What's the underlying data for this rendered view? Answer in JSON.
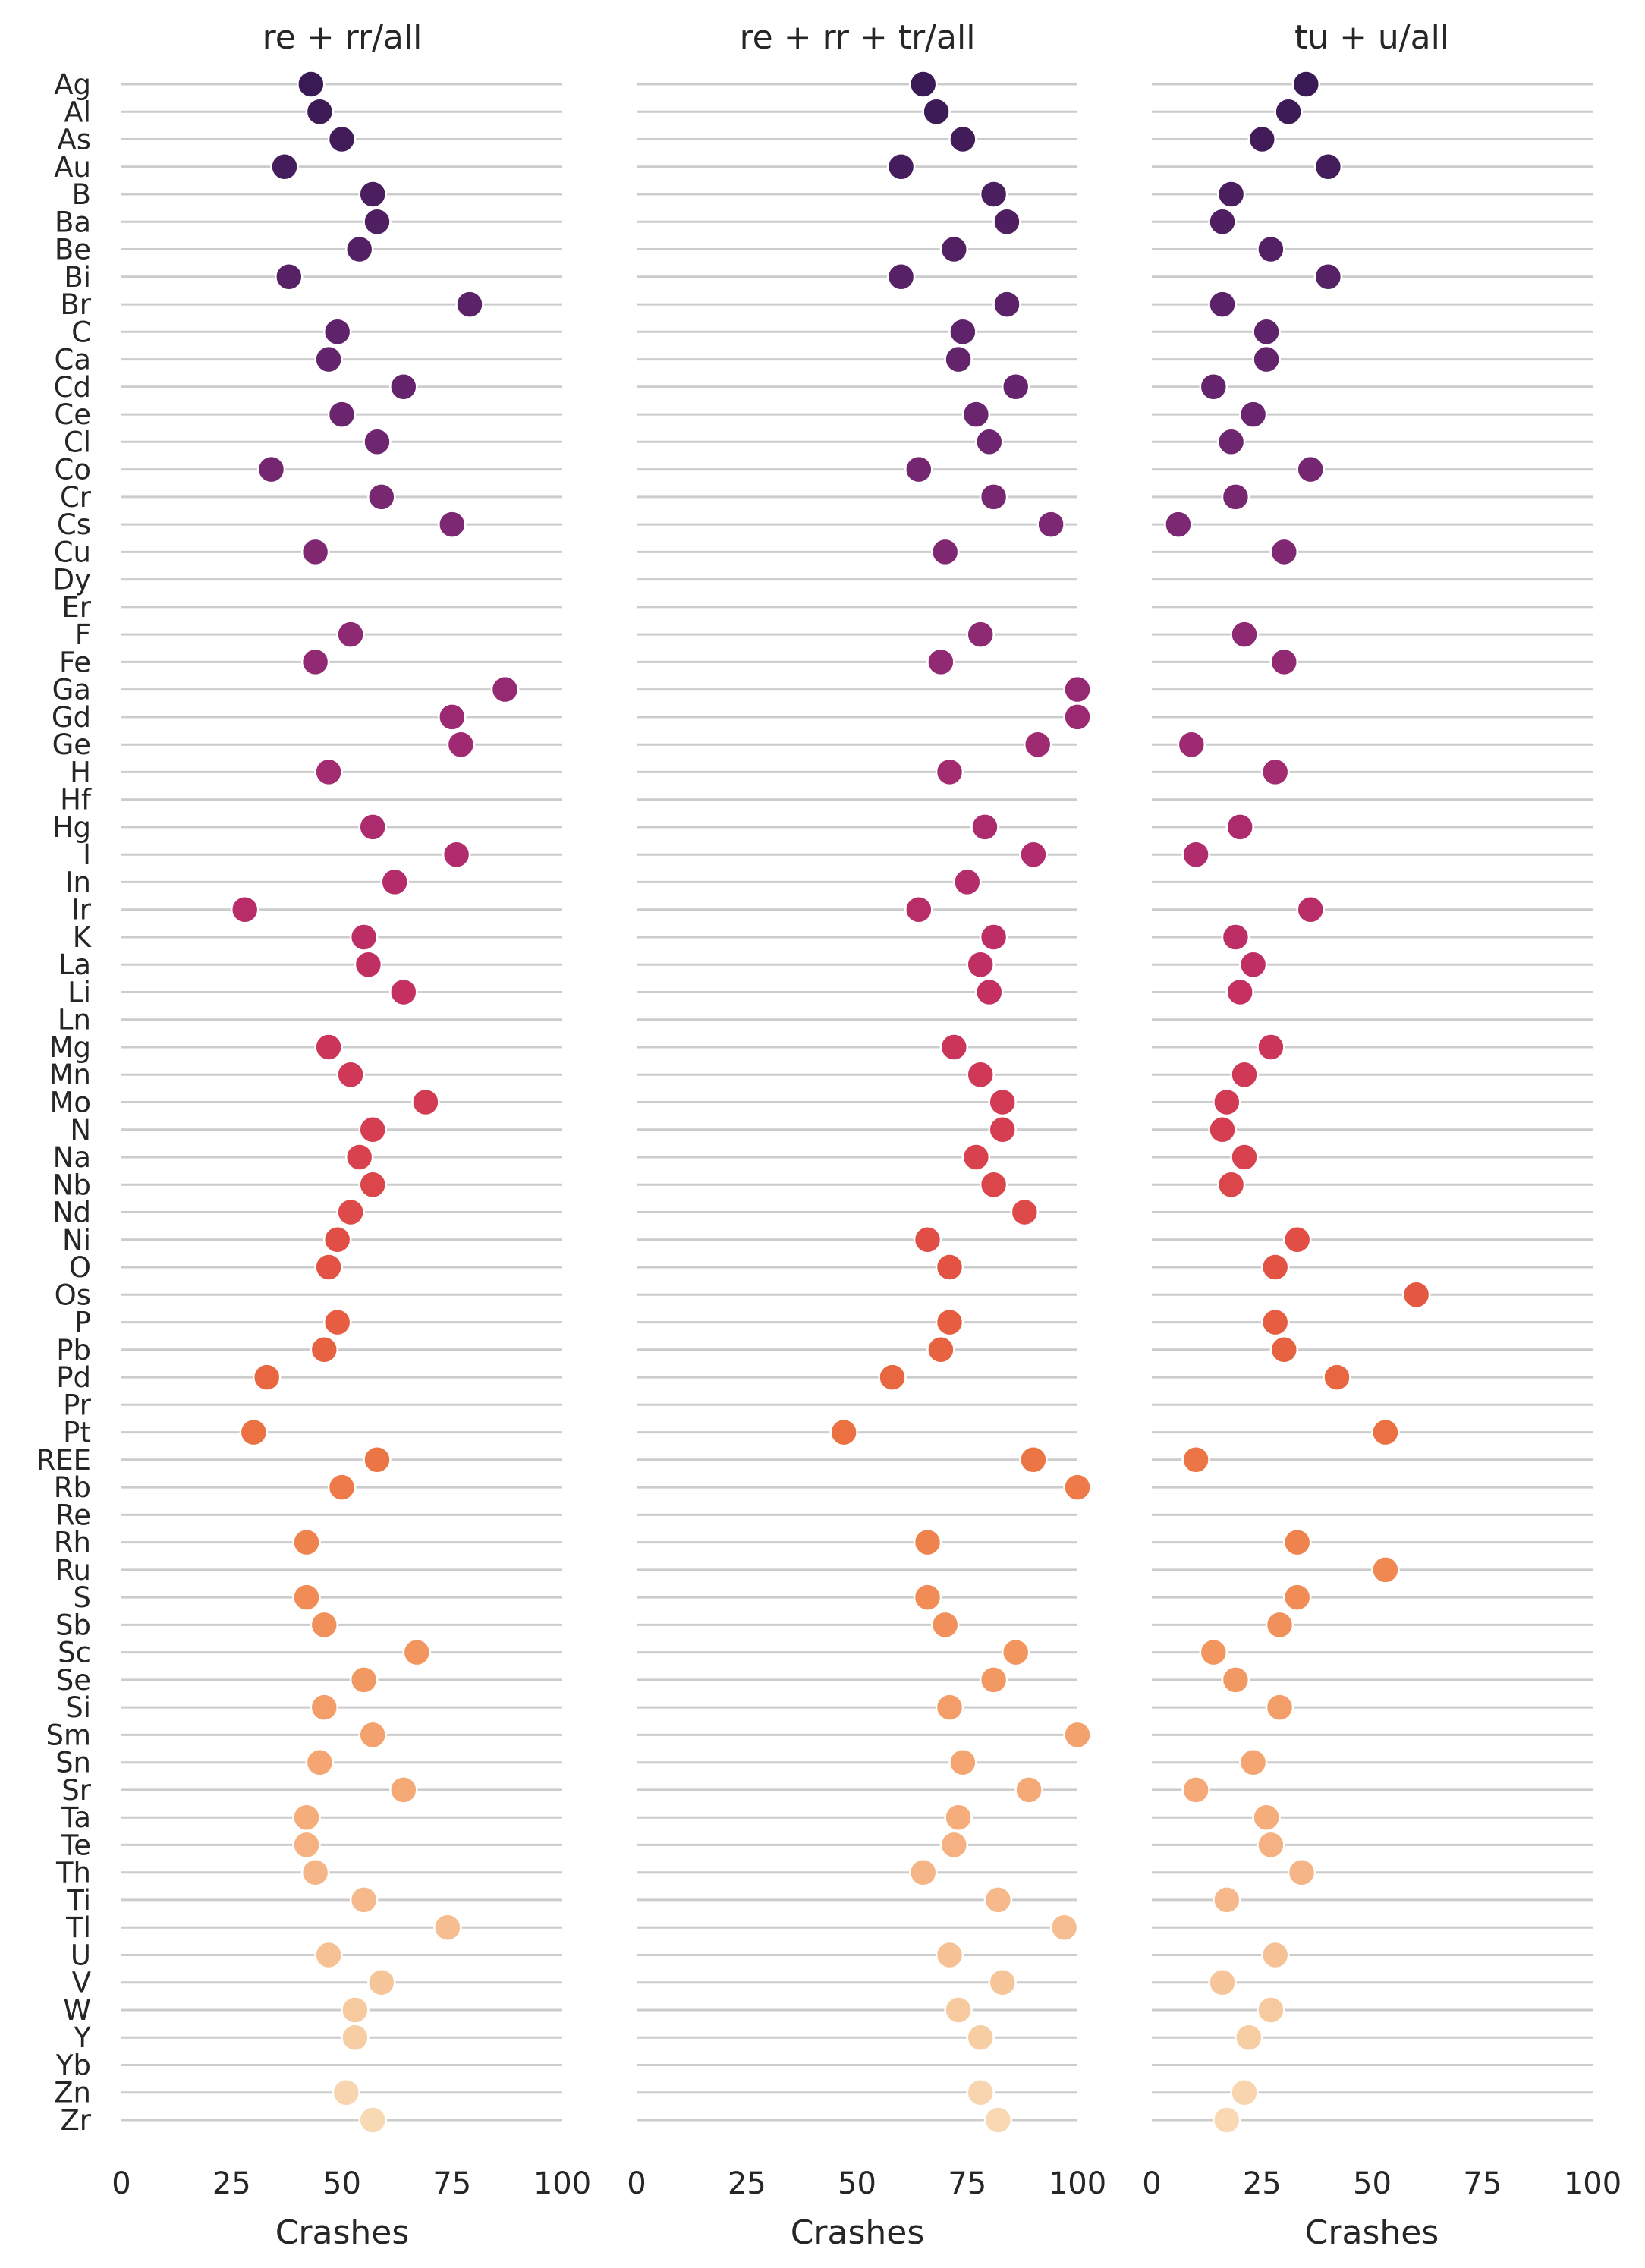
{
  "chart_data": {
    "type": "scatter",
    "x_label": "Crashes",
    "xlim": [
      0,
      100
    ],
    "x_ticks": [
      "0",
      "25",
      "50",
      "75",
      "100"
    ],
    "categories": [
      "Ag",
      "Al",
      "As",
      "Au",
      "B",
      "Ba",
      "Be",
      "Bi",
      "Br",
      "C",
      "Ca",
      "Cd",
      "Ce",
      "Cl",
      "Co",
      "Cr",
      "Cs",
      "Cu",
      "Dy",
      "Er",
      "F",
      "Fe",
      "Ga",
      "Gd",
      "Ge",
      "H",
      "Hf",
      "Hg",
      "I",
      "In",
      "Ir",
      "K",
      "La",
      "Li",
      "Ln",
      "Mg",
      "Mn",
      "Mo",
      "N",
      "Na",
      "Nb",
      "Nd",
      "Ni",
      "O",
      "Os",
      "P",
      "Pb",
      "Pd",
      "Pr",
      "Pt",
      "REE",
      "Rb",
      "Re",
      "Rh",
      "Ru",
      "S",
      "Sb",
      "Sc",
      "Se",
      "Si",
      "Sm",
      "Sn",
      "Sr",
      "Ta",
      "Te",
      "Th",
      "Ti",
      "Tl",
      "U",
      "V",
      "W",
      "Y",
      "Yb",
      "Zn",
      "Zr"
    ],
    "point_colors": [
      "#3a1a54",
      "#3d1b56",
      "#421c59",
      "#461d5c",
      "#4a1e5f",
      "#4f1f62",
      "#532064",
      "#572166",
      "#5b2269",
      "#5f236b",
      "#63246c",
      "#67246e",
      "#6b256f",
      "#6f2670",
      "#742671",
      "#782771",
      "#7c2872",
      "#812873",
      "#852973",
      "#892973",
      "#8d2a73",
      "#922a73",
      "#962a72",
      "#9b2a72",
      "#9f2a71",
      "#a32b70",
      "#a82b6f",
      "#ac2b6d",
      "#b02c6c",
      "#b42c6a",
      "#b82d68",
      "#bc2e65",
      "#c02f62",
      "#c43160",
      "#c8335d",
      "#cb355a",
      "#cf3857",
      "#d23b54",
      "#d53e51",
      "#d8424e",
      "#db464b",
      "#dd4a49",
      "#e04e46",
      "#e25344",
      "#e45842",
      "#e65d41",
      "#e76241",
      "#e86741",
      "#ea6c42",
      "#eb7143",
      "#ec7545",
      "#ed7a48",
      "#ee7f4b",
      "#ef834e",
      "#f08852",
      "#f18c56",
      "#f1905a",
      "#f2955f",
      "#f29963",
      "#f39d68",
      "#f3a16d",
      "#f4a572",
      "#f4a977",
      "#f5ad7c",
      "#f5b181",
      "#f5b586",
      "#f6b98b",
      "#f6bd90",
      "#f6c195",
      "#f7c59a",
      "#f7c99f",
      "#f7cda4",
      "#f8d1a9",
      "#f8d5ae",
      "#f8d9b3"
    ],
    "point_colors_note": "",
    "panels": [
      {
        "title": "re + rr/all",
        "values": [
          43,
          45,
          50,
          37,
          57,
          58,
          54,
          38,
          79,
          49,
          47,
          64,
          50,
          58,
          34,
          59,
          75,
          44,
          null,
          null,
          52,
          44,
          87,
          75,
          77,
          47,
          null,
          57,
          76,
          62,
          28,
          55,
          56,
          64,
          null,
          47,
          52,
          69,
          57,
          54,
          57,
          52,
          49,
          47,
          null,
          49,
          46,
          33,
          null,
          30,
          58,
          50,
          null,
          42,
          null,
          42,
          46,
          67,
          55,
          46,
          57,
          45,
          64,
          42,
          42,
          44,
          55,
          74,
          47,
          59,
          53,
          53,
          null,
          51,
          57
        ]
      },
      {
        "title": "re + rr + tr/all",
        "values": [
          65,
          68,
          74,
          60,
          81,
          84,
          72,
          60,
          84,
          74,
          73,
          86,
          77,
          80,
          64,
          81,
          94,
          70,
          null,
          null,
          78,
          69,
          100,
          100,
          91,
          71,
          null,
          79,
          90,
          75,
          64,
          81,
          78,
          80,
          null,
          72,
          78,
          83,
          83,
          77,
          81,
          88,
          66,
          71,
          null,
          71,
          69,
          58,
          null,
          47,
          90,
          100,
          null,
          66,
          null,
          66,
          70,
          86,
          81,
          71,
          100,
          74,
          89,
          73,
          72,
          65,
          82,
          97,
          71,
          83,
          73,
          78,
          null,
          78,
          82
        ]
      },
      {
        "title": "tu + u/all",
        "values": [
          35,
          31,
          25,
          40,
          18,
          16,
          27,
          40,
          16,
          26,
          26,
          14,
          23,
          18,
          36,
          19,
          6,
          30,
          null,
          null,
          21,
          30,
          null,
          null,
          9,
          28,
          null,
          20,
          10,
          null,
          36,
          19,
          23,
          20,
          null,
          27,
          21,
          17,
          16,
          21,
          18,
          null,
          33,
          28,
          60,
          28,
          30,
          42,
          null,
          53,
          10,
          null,
          null,
          33,
          53,
          33,
          29,
          14,
          19,
          29,
          null,
          23,
          10,
          26,
          27,
          34,
          17,
          null,
          28,
          16,
          27,
          22,
          null,
          21,
          17
        ]
      }
    ]
  }
}
